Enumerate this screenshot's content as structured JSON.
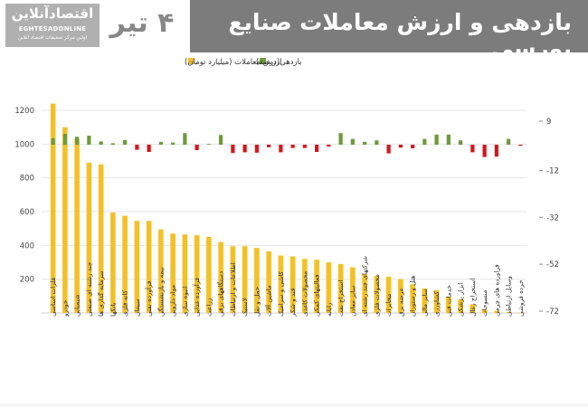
{
  "header": {
    "title": "بازدهی و ارزش معاملات صنایع بورسی",
    "date": "۴ تیر",
    "logo_fa": "اقتصادآنلاین",
    "logo_en": "EGHTESADONLINE",
    "logo_sub": "اولین مرکز تحقیقات اقتصاد آنلاین"
  },
  "colors": {
    "header_band": "#7c7c7c",
    "bar_value": "#f4c027",
    "bar_positive": "#6e9a3a",
    "bar_negative": "#d9141c"
  },
  "chart_data": {
    "type": "bar",
    "legend": {
      "placement": "top-left",
      "items": [
        {
          "label": "بازدهی(درصد)",
          "color": "#6e9a3a"
        },
        {
          "label": "ارزش معاملات (میلیارد تومان)",
          "color": "#f4c027"
        }
      ]
    },
    "left_axis": {
      "ticks": [
        "1200",
        "1000",
        "800",
        "600",
        "400",
        "200"
      ],
      "tick_values": [
        1200,
        1000,
        800,
        600,
        400,
        200
      ],
      "ylim": [
        0,
        1200
      ]
    },
    "right_axis": {
      "ticks": [
        "9",
        "-12",
        "-32",
        "-52",
        "-72"
      ],
      "tick_values": [
        9,
        -12,
        -32,
        -52,
        -72
      ],
      "ylim": [
        -72,
        9
      ]
    },
    "categories": [
      "فلزات اساسی",
      "خودرو",
      "شیمیایی",
      "چند رشته ای صنعتی",
      "سرمایه گذاری ها",
      "بانکها",
      "کانه فلزی",
      "سیمان",
      "فرآورده نفتی",
      "بیمه و بازنشستگی",
      "مواد دارویی",
      "انبوه سازی",
      "فرآورده غذایی",
      "زراعت",
      "دستگاههای برقی",
      "اطلاعات و ارتباطات",
      "لاستیک",
      "حمل و نقل",
      "ماشین آلات",
      "کاشی و سرامیک",
      "قند و شکر",
      "محصولات کاغذی",
      "فعالیتهای کمکی",
      "رایانه",
      "استخراج نفت",
      "سایر معادن",
      "شرکتهای چند رشته ای",
      "محصولات فلزی",
      "مخابرات",
      "عرضه برق",
      "هتل و رستوران",
      "سایر مالی",
      "کشاورزی",
      "خدمات فنی",
      "ابزار پزشکی",
      "استخراج زغال",
      "منسوجات",
      "فراورده های چرمی",
      "وسایل ارتباطی",
      "خرده فروشی"
    ],
    "series": [
      {
        "name": "ارزش معاملات (میلیارد تومان)",
        "axis": "left",
        "values": [
          1240,
          1100,
          1030,
          890,
          880,
          595,
          575,
          545,
          545,
          495,
          470,
          465,
          460,
          450,
          420,
          395,
          395,
          385,
          365,
          340,
          335,
          320,
          315,
          300,
          290,
          270,
          230,
          220,
          215,
          200,
          170,
          145,
          135,
          95,
          80,
          50,
          20,
          12,
          5,
          2
        ]
      },
      {
        "name": "بازدهی(درصد)",
        "axis": "right",
        "values": [
          1.8,
          3.0,
          2.2,
          2.5,
          0.9,
          0.4,
          1.3,
          -1.4,
          -2.0,
          0.8,
          0.6,
          3.2,
          -1.5,
          0.2,
          2.7,
          -2.3,
          -2.1,
          -2.2,
          -0.7,
          -2.1,
          -0.9,
          -0.9,
          -2.0,
          -0.5,
          3.2,
          1.6,
          0.8,
          1.2,
          -2.4,
          -0.8,
          -1.0,
          1.6,
          2.8,
          2.8,
          1.2,
          -2.1,
          -3.4,
          -3.3,
          1.6,
          -0.3
        ]
      }
    ]
  }
}
